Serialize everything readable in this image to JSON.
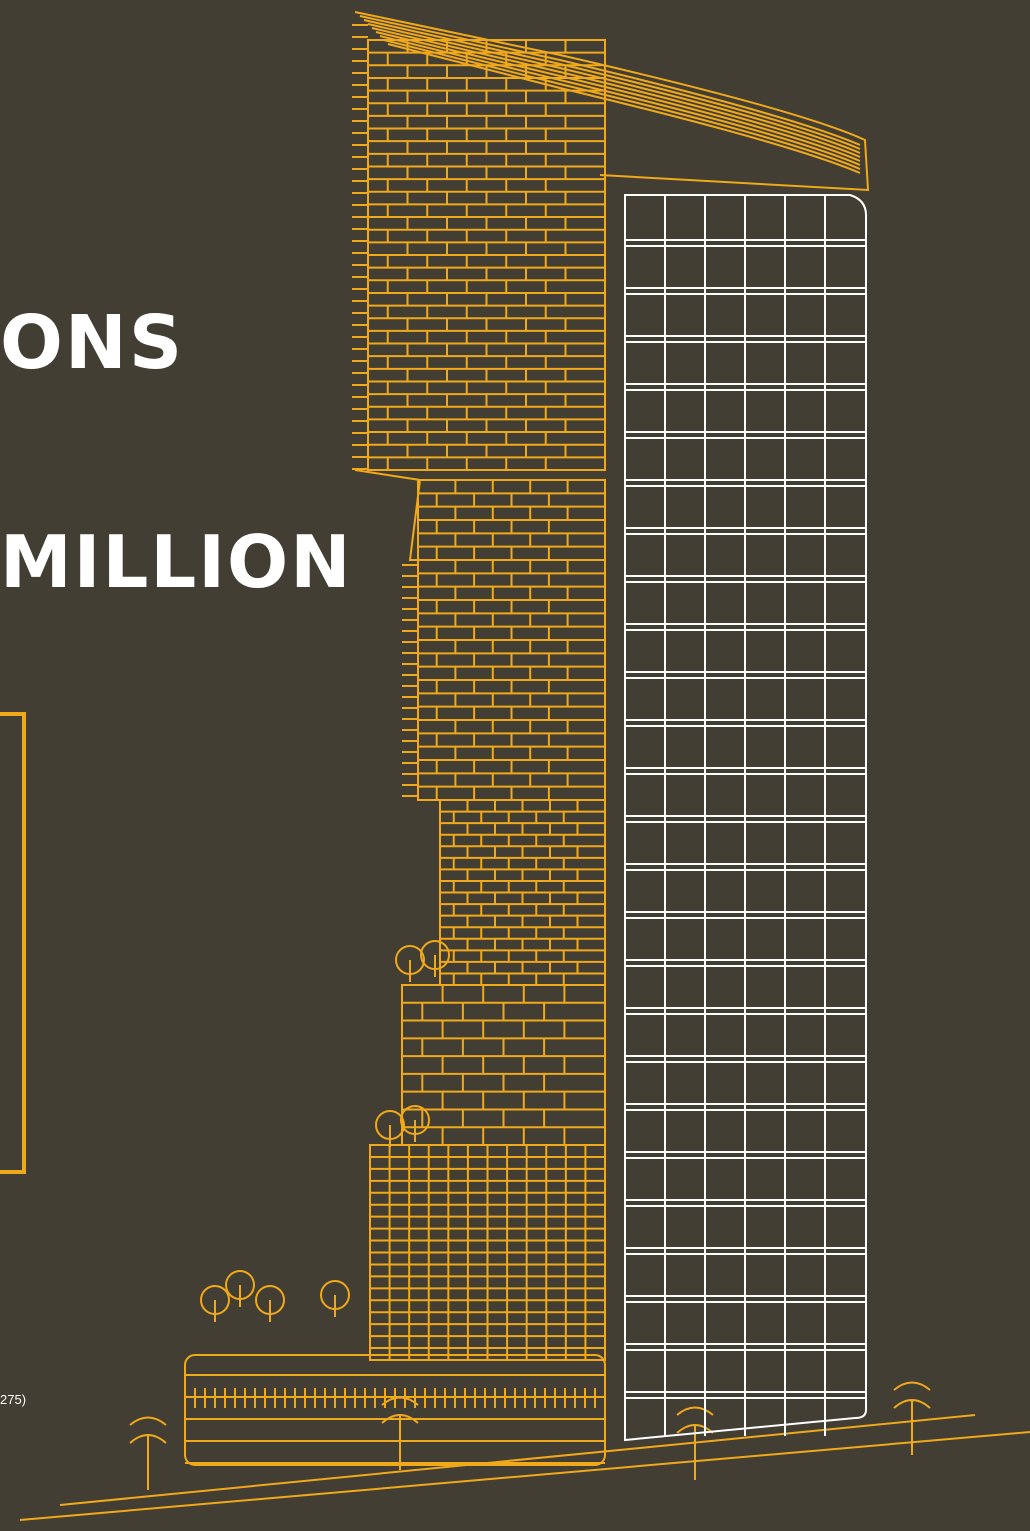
{
  "headline_top": "ONS",
  "headline_bottom": "MILLION",
  "footnote": "275)",
  "colors": {
    "background": "#433e33",
    "accent": "#f0a91b",
    "outline": "#ffffff"
  }
}
